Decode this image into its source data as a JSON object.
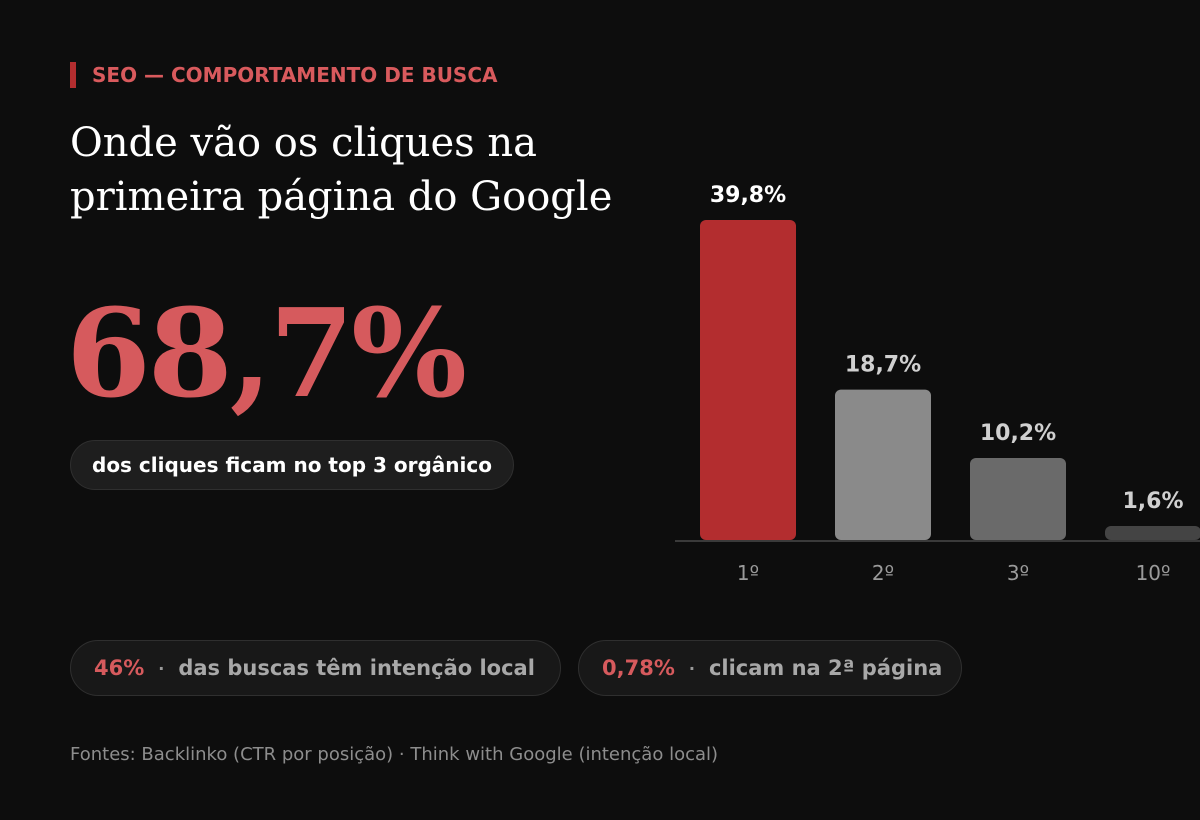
{
  "eyebrow": "SEO — COMPORTAMENTO DE BUSCA",
  "title_line1": "Onde vão os cliques na",
  "title_line2": "primeira página do Google",
  "highlight": {
    "value": "68,7%",
    "caption": "dos cliques ficam no top 3 orgânico"
  },
  "stats": [
    {
      "value": "46%",
      "label": "das buscas têm intenção local"
    },
    {
      "value": "0,78%",
      "label": "clicam na 2ª página"
    }
  ],
  "separator": "·",
  "source": "Fontes: Backlinko (CTR por posição) · Think with Google (intenção local)",
  "colors": {
    "background": "#0d0d0d",
    "accent": "#b32d2f",
    "accent_text": "#d65a5d",
    "bar_2": "#8a8a8a",
    "bar_3": "#6a6a6a",
    "bar_10": "#444444"
  },
  "chart_data": {
    "type": "bar",
    "categories": [
      "1º",
      "2º",
      "3º",
      "10º"
    ],
    "values": [
      39.8,
      18.7,
      10.2,
      1.6
    ],
    "value_labels": [
      "39,8%",
      "18,7%",
      "10,2%",
      "1,6%"
    ],
    "ylim": [
      0,
      39.8
    ],
    "grid": false,
    "xlabel": "",
    "ylabel": ""
  }
}
